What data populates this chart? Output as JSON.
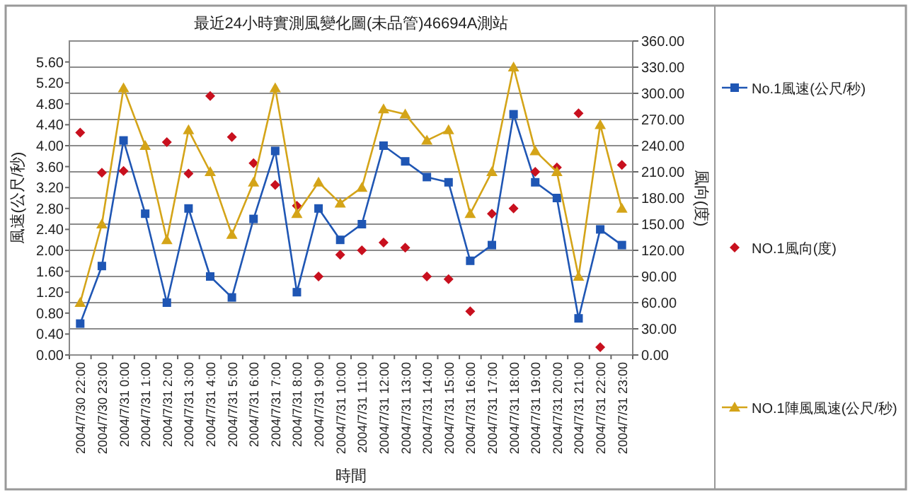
{
  "chart_data": {
    "type": "line",
    "title": "最近24小時實測風變化圖(未品管)46694A測站",
    "xlabel": "時間",
    "ylabel": "風速(公尺/秒)",
    "y2label": "風向(度)",
    "categories": [
      "2004/7/30 22:00",
      "2004/7/30 23:00",
      "2004/7/31 0:00",
      "2004/7/31 1:00",
      "2004/7/31 2:00",
      "2004/7/31 3:00",
      "2004/7/31 4:00",
      "2004/7/31 5:00",
      "2004/7/31 6:00",
      "2004/7/31 7:00",
      "2004/7/31 8:00",
      "2004/7/31 9:00",
      "2004/7/31 10:00",
      "2004/7/31 11:00",
      "2004/7/31 12:00",
      "2004/7/31 13:00",
      "2004/7/31 14:00",
      "2004/7/31 15:00",
      "2004/7/31 16:00",
      "2004/7/31 17:00",
      "2004/7/31 18:00",
      "2004/7/31 19:00",
      "2004/7/31 20:00",
      "2004/7/31 21:00",
      "2004/7/31 22:00",
      "2004/7/31 23:00"
    ],
    "series": [
      {
        "name": "No.1風速(公尺/秒)",
        "type": "line",
        "marker": "square",
        "color": "#1f56b4",
        "values": [
          0.6,
          1.7,
          4.1,
          2.7,
          1.0,
          2.8,
          1.5,
          1.1,
          2.6,
          3.9,
          1.2,
          2.8,
          2.2,
          2.5,
          4.0,
          3.7,
          3.4,
          3.3,
          1.8,
          2.1,
          4.6,
          3.3,
          3.0,
          0.7,
          2.4,
          2.1
        ]
      },
      {
        "name": "NO.1風向(度)",
        "type": "scatter",
        "marker": "diamond",
        "axis": "y2",
        "color": "#c8101e",
        "values": [
          255,
          209,
          211,
          null,
          244,
          208,
          297,
          250,
          220,
          195,
          171,
          90,
          115,
          120,
          129,
          123,
          90,
          87,
          50,
          162,
          168,
          210,
          215,
          277,
          9,
          218
        ]
      },
      {
        "name": "NO.1陣風風速(公尺/秒)",
        "type": "line",
        "marker": "triangle",
        "color": "#d4a418",
        "values": [
          1.0,
          2.5,
          5.1,
          4.0,
          2.2,
          4.3,
          3.5,
          2.3,
          3.3,
          5.1,
          2.7,
          3.3,
          2.9,
          3.2,
          4.7,
          4.6,
          4.1,
          4.3,
          2.7,
          3.5,
          5.5,
          3.9,
          3.5,
          1.5,
          4.4,
          2.8
        ]
      }
    ],
    "ylim": [
      0,
      6
    ],
    "yticks": [
      {
        "value": 0,
        "label": "0.00"
      },
      {
        "value": 0.4,
        "label": "0.40"
      },
      {
        "value": 0.8,
        "label": "0.80"
      },
      {
        "value": 1.2,
        "label": "1.20"
      },
      {
        "value": 1.6,
        "label": "1.60"
      },
      {
        "value": 2.0,
        "label": "2.00"
      },
      {
        "value": 2.4,
        "label": "2.40"
      },
      {
        "value": 2.8,
        "label": "2.80"
      },
      {
        "value": 3.2,
        "label": "3.20"
      },
      {
        "value": 3.6,
        "label": "3.60"
      },
      {
        "value": 4.0,
        "label": "4.00"
      },
      {
        "value": 4.4,
        "label": "4.40"
      },
      {
        "value": 4.8,
        "label": "4.80"
      },
      {
        "value": 5.2,
        "label": "5.20"
      },
      {
        "value": 5.6,
        "label": "5.60"
      }
    ],
    "y2lim": [
      0,
      360
    ],
    "y2ticks": [
      {
        "value": 0,
        "label": "0.00"
      },
      {
        "value": 30,
        "label": "30.00"
      },
      {
        "value": 60,
        "label": "60.00"
      },
      {
        "value": 90,
        "label": "90.00"
      },
      {
        "value": 120,
        "label": "120.00"
      },
      {
        "value": 150,
        "label": "150.00"
      },
      {
        "value": 180,
        "label": "180.00"
      },
      {
        "value": 210,
        "label": "210.00"
      },
      {
        "value": 240,
        "label": "240.00"
      },
      {
        "value": 270,
        "label": "270.00"
      },
      {
        "value": 300,
        "label": "300.00"
      },
      {
        "value": 330,
        "label": "330.00"
      },
      {
        "value": 360,
        "label": "360.00"
      }
    ],
    "grid": "y",
    "legend": "right"
  }
}
